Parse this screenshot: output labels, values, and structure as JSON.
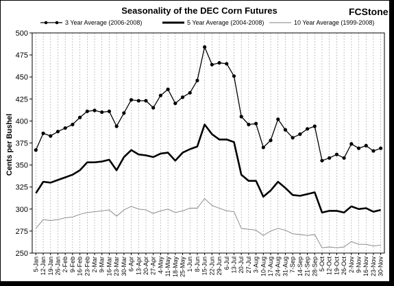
{
  "brand": {
    "logo_text": "FCStone"
  },
  "chart_data": {
    "type": "line",
    "title": "Seasonality of the DEC Corn Futures",
    "ylabel": "Cents per Bushel",
    "xlabel": "",
    "ylim": [
      250,
      500
    ],
    "yticks": [
      250,
      275,
      300,
      325,
      350,
      375,
      400,
      425,
      450,
      475,
      500
    ],
    "grid": "vertical-dashed",
    "legend_position": "top",
    "categories": [
      "5-Jan",
      "12-Jan",
      "19-Jan",
      "26-Jan",
      "2-Feb",
      "9-Feb",
      "16-Feb",
      "23-Feb",
      "2-Mar",
      "9-Mar",
      "16-Mar",
      "23-Mar",
      "30-Mar",
      "6-Apr",
      "13-Apr",
      "20-Apr",
      "27-Apr",
      "4-May",
      "11-May",
      "18-May",
      "25-May",
      "1-Jun",
      "8-Jun",
      "15-Jun",
      "22-Jun",
      "29-Jun",
      "6-Jul",
      "13-Jul",
      "20-Jul",
      "27-Jul",
      "3-Aug",
      "10-Aug",
      "17-Aug",
      "24-Aug",
      "31-Aug",
      "7-Sep",
      "14-Sep",
      "21-Sep",
      "28-Sep",
      "5-Oct",
      "12-Oct",
      "19-Oct",
      "26-Oct",
      "2-Nov",
      "9-Nov",
      "16-Nov",
      "23-Nov",
      "30-Nov"
    ],
    "series": [
      {
        "name": "3 Year Average (2006-2008)",
        "style": "line-markers",
        "color": "#000000",
        "x": [
          0,
          1,
          2,
          3,
          4,
          5,
          6,
          7,
          8,
          9,
          10,
          11,
          12,
          13,
          14,
          15,
          16,
          17,
          18,
          19,
          20,
          21,
          22,
          23,
          24,
          25,
          26,
          27,
          28,
          29,
          30,
          31,
          32,
          33,
          34,
          35,
          36,
          37,
          38,
          39,
          40,
          41,
          42,
          43,
          44,
          45,
          46,
          47
        ],
        "values": [
          367,
          386,
          383,
          388,
          392,
          396,
          404,
          411,
          412,
          410,
          411,
          394,
          409,
          424,
          423,
          423,
          415,
          429,
          436,
          420,
          427,
          432,
          446,
          484,
          464,
          466,
          465,
          451,
          405,
          396,
          397,
          370,
          378,
          402,
          390,
          381,
          385,
          391,
          394,
          355,
          358,
          362,
          358,
          374,
          369,
          372,
          366,
          369
        ]
      },
      {
        "name": "5 Year Average (2004-2008)",
        "style": "thick-line",
        "color": "#000000",
        "x": [
          0,
          1,
          2,
          3,
          4,
          5,
          6,
          7,
          8,
          9,
          10,
          11,
          12,
          13,
          14,
          15,
          16,
          17,
          18,
          19,
          20,
          21,
          22,
          23,
          24,
          25,
          26,
          27,
          28,
          29,
          30,
          31,
          32,
          33,
          34,
          35,
          36,
          37,
          38,
          39,
          40,
          41,
          42,
          43,
          44,
          45,
          46,
          47
        ],
        "values": [
          318,
          331,
          330,
          333,
          336,
          339,
          344,
          353,
          353,
          354,
          356,
          344,
          359,
          367,
          362,
          361,
          359,
          363,
          364,
          355,
          364,
          368,
          371,
          396,
          385,
          379,
          379,
          376,
          339,
          332,
          332,
          314,
          321,
          331,
          324,
          316,
          315,
          317,
          319,
          296,
          298,
          298,
          296,
          303,
          300,
          301,
          297,
          299
        ]
      },
      {
        "name": "10 Year Average (1999-2008)",
        "style": "thin-line",
        "color": "#808080",
        "x": [
          0,
          1,
          2,
          3,
          4,
          5,
          6,
          7,
          8,
          9,
          10,
          11,
          12,
          13,
          14,
          15,
          16,
          17,
          18,
          19,
          20,
          21,
          22,
          23,
          24,
          25,
          26,
          27,
          28,
          29,
          30,
          31,
          32,
          33,
          34,
          35,
          36,
          37,
          38,
          39,
          40,
          41,
          42,
          43,
          44,
          45,
          46,
          47
        ],
        "values": [
          278,
          288,
          287,
          288,
          290,
          291,
          294,
          296,
          297,
          298,
          299,
          292,
          299,
          303,
          300,
          299,
          295,
          298,
          300,
          296,
          298,
          301,
          301,
          312,
          304,
          301,
          298,
          297,
          278,
          277,
          276,
          270,
          275,
          278,
          276,
          272,
          271,
          270,
          271,
          256,
          257,
          256,
          257,
          263,
          260,
          260,
          258,
          259
        ]
      }
    ]
  }
}
